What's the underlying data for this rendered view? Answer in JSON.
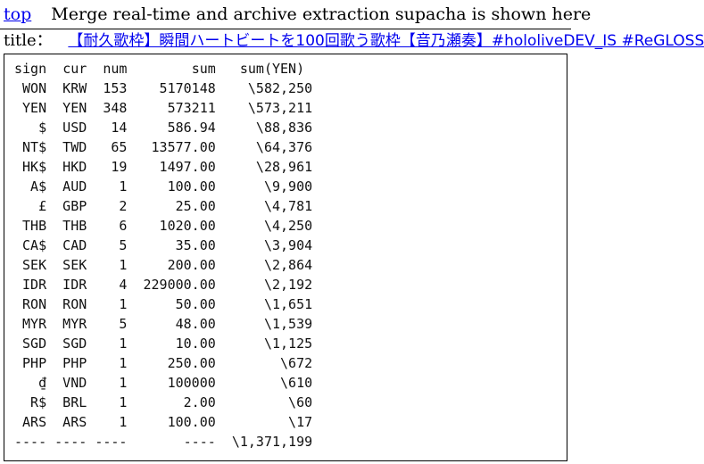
{
  "nav": {
    "top_link": "top",
    "message": "Merge real-time and archive extraction supacha is shown here"
  },
  "title": {
    "label": "title：",
    "link_text": "【耐久歌枠】瞬間ハートビートを100回歌う歌枠【音乃瀬奏】#hololiveDEV_IS #ReGLOSS"
  },
  "table": {
    "columns": [
      "sign",
      "cur",
      "num",
      "sum",
      "sum(YEN)"
    ],
    "rows": [
      [
        "WON",
        "KRW",
        "153",
        "5170148",
        "\\582,250"
      ],
      [
        "YEN",
        "YEN",
        "348",
        "573211",
        "\\573,211"
      ],
      [
        "$",
        "USD",
        "14",
        "586.94",
        "\\88,836"
      ],
      [
        "NT$",
        "TWD",
        "65",
        "13577.00",
        "\\64,376"
      ],
      [
        "HK$",
        "HKD",
        "19",
        "1497.00",
        "\\28,961"
      ],
      [
        "A$",
        "AUD",
        "1",
        "100.00",
        "\\9,900"
      ],
      [
        "£",
        "GBP",
        "2",
        "25.00",
        "\\4,781"
      ],
      [
        "THB",
        "THB",
        "6",
        "1020.00",
        "\\4,250"
      ],
      [
        "CA$",
        "CAD",
        "5",
        "35.00",
        "\\3,904"
      ],
      [
        "SEK",
        "SEK",
        "1",
        "200.00",
        "\\2,864"
      ],
      [
        "IDR",
        "IDR",
        "4",
        "229000.00",
        "\\2,192"
      ],
      [
        "RON",
        "RON",
        "1",
        "50.00",
        "\\1,651"
      ],
      [
        "MYR",
        "MYR",
        "5",
        "48.00",
        "\\1,539"
      ],
      [
        "SGD",
        "SGD",
        "1",
        "10.00",
        "\\1,125"
      ],
      [
        "PHP",
        "PHP",
        "1",
        "250.00",
        "\\672"
      ],
      [
        "₫",
        "VND",
        "1",
        "100000",
        "\\610"
      ],
      [
        "R$",
        "BRL",
        "1",
        "2.00",
        "\\60"
      ],
      [
        "ARS",
        "ARS",
        "1",
        "100.00",
        "\\17"
      ]
    ],
    "footer": [
      "----",
      "----",
      "----",
      "----",
      "\\1,371,199"
    ]
  },
  "colors": {
    "link": "#0000ee",
    "text": "#000000",
    "background": "#ffffff"
  }
}
